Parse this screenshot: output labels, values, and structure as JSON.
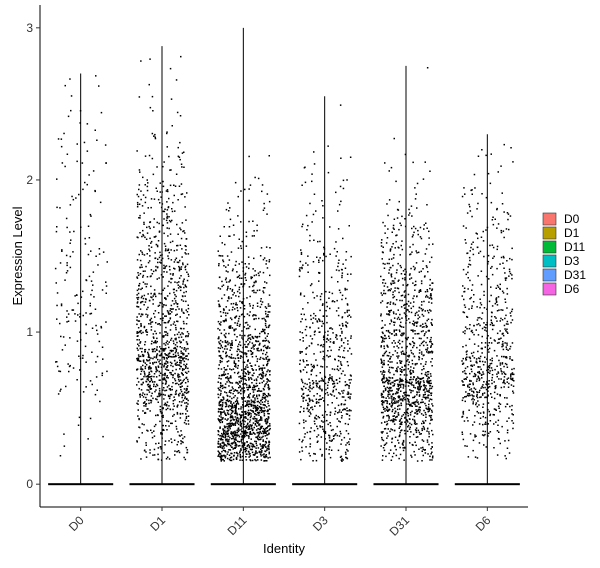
{
  "chart_data": {
    "type": "violin",
    "title": "",
    "xlabel": "Identity",
    "ylabel": "Expression Level",
    "ylim": [
      -0.15,
      3.15
    ],
    "yticks": [
      0,
      1,
      2,
      3
    ],
    "grid": false,
    "legend_position": "right",
    "categories": [
      "D0",
      "D1",
      "D11",
      "D3",
      "D31",
      "D6"
    ],
    "colors": [
      "#F8766D",
      "#B79F00",
      "#00BA38",
      "#00BFC4",
      "#619CFF",
      "#F564E3"
    ],
    "series": [
      {
        "name": "D0",
        "max": 2.7,
        "n_points": 420,
        "fraction_zero": 0.55,
        "center_level": 1.2,
        "spread": 0.7
      },
      {
        "name": "D1",
        "max": 2.88,
        "n_points": 1500,
        "fraction_zero": 0.2,
        "center_level": 0.9,
        "spread": 0.55
      },
      {
        "name": "D11",
        "max": 3.0,
        "n_points": 1900,
        "fraction_zero": 0.15,
        "center_level": 0.55,
        "spread": 0.45
      },
      {
        "name": "D3",
        "max": 2.55,
        "n_points": 900,
        "fraction_zero": 0.3,
        "center_level": 0.7,
        "spread": 0.5
      },
      {
        "name": "D31",
        "max": 2.75,
        "n_points": 1500,
        "fraction_zero": 0.2,
        "center_level": 0.7,
        "spread": 0.45
      },
      {
        "name": "D6",
        "max": 2.3,
        "n_points": 950,
        "fraction_zero": 0.3,
        "center_level": 0.85,
        "spread": 0.5
      }
    ]
  }
}
